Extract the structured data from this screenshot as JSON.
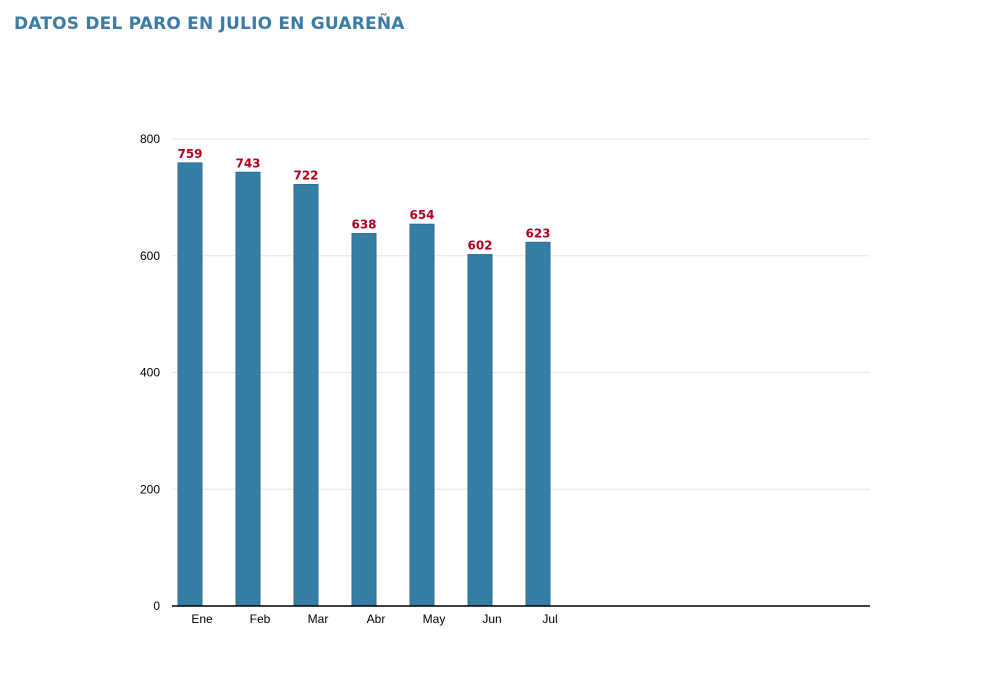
{
  "colors": {
    "title": "#3a7ca5",
    "bar": "#357ea4",
    "bar_border": "#2c6a8c",
    "data_label": "#b00020",
    "gridline": "#e6e6e6",
    "axis": "#000000"
  },
  "chart_data": {
    "type": "bar",
    "title": "DATOS DEL PARO EN JULIO EN GUAREÑA",
    "xlabel": "",
    "ylabel": "",
    "categories": [
      "Ene",
      "Feb",
      "Mar",
      "Abr",
      "May",
      "Jun",
      "Jul"
    ],
    "values": [
      759,
      743,
      722,
      638,
      654,
      602,
      623
    ],
    "ylim": [
      0,
      800
    ],
    "yticks": [
      0,
      200,
      400,
      600,
      800
    ],
    "grid": true,
    "data_labels": true,
    "legend": "none"
  }
}
